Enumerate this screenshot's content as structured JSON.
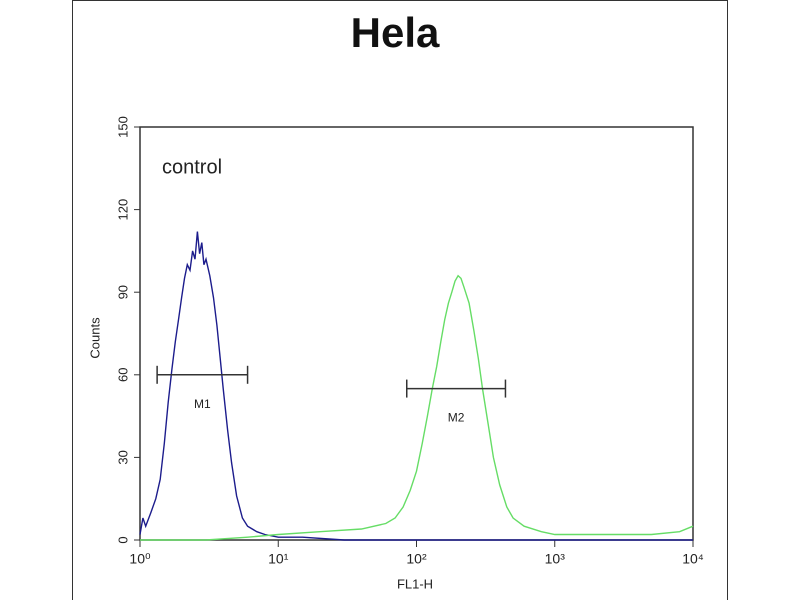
{
  "chart_data": {
    "type": "histogram-line",
    "title": "Hela",
    "xlabel": "FL1-H",
    "ylabel": "Counts",
    "annotation": "control",
    "xscale": "log",
    "xlim": [
      1,
      10000
    ],
    "xticks": [
      {
        "value": 1,
        "label": "10⁰"
      },
      {
        "value": 10,
        "label": "10¹"
      },
      {
        "value": 100,
        "label": "10²"
      },
      {
        "value": 1000,
        "label": "10³"
      },
      {
        "value": 10000,
        "label": "10⁴"
      }
    ],
    "ylim": [
      0,
      150
    ],
    "yticks": [
      0,
      30,
      60,
      90,
      120,
      150
    ],
    "series": [
      {
        "color": "#1c1c8c",
        "x": [
          1.0,
          1.05,
          1.1,
          1.2,
          1.3,
          1.4,
          1.5,
          1.6,
          1.7,
          1.8,
          1.9,
          2.0,
          2.1,
          2.2,
          2.3,
          2.4,
          2.5,
          2.6,
          2.7,
          2.8,
          2.9,
          3.0,
          3.2,
          3.4,
          3.6,
          3.8,
          4.0,
          4.3,
          4.6,
          5.0,
          5.5,
          6.0,
          7,
          8,
          10,
          15,
          30,
          100,
          1000,
          10000
        ],
        "values": [
          2,
          8,
          5,
          10,
          15,
          22,
          35,
          50,
          62,
          72,
          80,
          88,
          95,
          100,
          98,
          105,
          102,
          112,
          104,
          108,
          100,
          102,
          96,
          88,
          78,
          66,
          55,
          40,
          28,
          16,
          8,
          5,
          3,
          2,
          1,
          1,
          0,
          0,
          0,
          0
        ]
      },
      {
        "color": "#66dd66",
        "x": [
          1,
          3,
          6,
          10,
          20,
          40,
          60,
          70,
          80,
          90,
          100,
          110,
          120,
          130,
          140,
          150,
          160,
          170,
          180,
          190,
          200,
          210,
          220,
          240,
          260,
          280,
          300,
          330,
          360,
          400,
          450,
          500,
          600,
          800,
          1000,
          2000,
          5000,
          8000,
          10000
        ],
        "values": [
          0,
          0,
          1,
          2,
          3,
          4,
          6,
          8,
          12,
          18,
          25,
          35,
          45,
          55,
          63,
          72,
          80,
          86,
          90,
          94,
          96,
          95,
          92,
          86,
          76,
          66,
          55,
          42,
          30,
          20,
          12,
          8,
          5,
          3,
          2,
          2,
          2,
          3,
          5
        ]
      }
    ],
    "markers": [
      {
        "label": "M1",
        "x": [
          1.33,
          6.0
        ],
        "y": 60
      },
      {
        "label": "M2",
        "x": [
          85,
          440
        ],
        "y": 55
      }
    ]
  }
}
